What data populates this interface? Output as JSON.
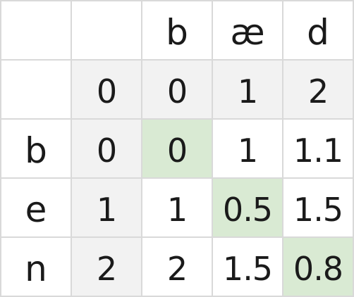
{
  "table": {
    "corner_top": "",
    "corner_mid": "",
    "col_headers": [
      "b",
      "æ",
      "d"
    ],
    "init_row": [
      "0",
      "0",
      "1",
      "2"
    ],
    "rows": [
      {
        "label": "b",
        "cells": [
          "0",
          "0",
          "1",
          "1.1"
        ]
      },
      {
        "label": "e",
        "cells": [
          "1",
          "1",
          "0.5",
          "1.5"
        ]
      },
      {
        "label": "n",
        "cells": [
          "2",
          "2",
          "1.5",
          "0.8"
        ]
      }
    ]
  },
  "colors": {
    "header_shade": "#f2f2f2",
    "highlight": "#d9ead3",
    "border": "#d9d9d9"
  }
}
